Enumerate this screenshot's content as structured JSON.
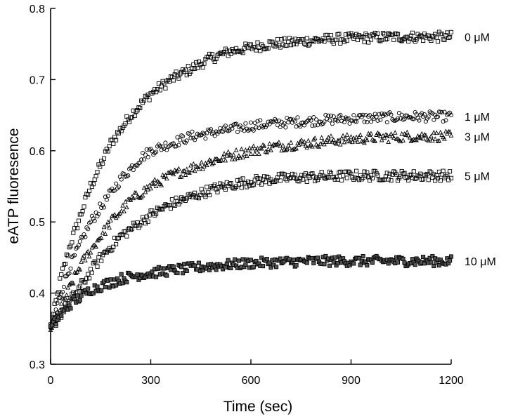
{
  "chart_data": {
    "type": "scatter",
    "title": "",
    "xlabel": "Time (sec)",
    "ylabel": "eATP fluoresence",
    "xlim": [
      0,
      1200
    ],
    "ylim": [
      0.3,
      0.8
    ],
    "xticks": [
      0,
      300,
      600,
      900,
      1200
    ],
    "xtick_labels": [
      "0",
      "300",
      "600",
      "900",
      "1200"
    ],
    "yticks": [
      0.3,
      0.4,
      0.5,
      0.6,
      0.7,
      0.8
    ],
    "ytick_labels": [
      "0.3",
      "0.4",
      "0.5",
      "0.6",
      "0.7",
      "0.8"
    ],
    "grid": false,
    "legend": "none",
    "series": [
      {
        "name": "0 μM",
        "marker": "square",
        "x": [
          0,
          30,
          60,
          90,
          120,
          150,
          180,
          210,
          240,
          270,
          300,
          360,
          420,
          480,
          540,
          600,
          660,
          720,
          780,
          840,
          900,
          960,
          1020,
          1080,
          1140,
          1200
        ],
        "y": [
          0.35,
          0.42,
          0.47,
          0.51,
          0.55,
          0.58,
          0.61,
          0.63,
          0.65,
          0.665,
          0.68,
          0.7,
          0.715,
          0.73,
          0.74,
          0.745,
          0.75,
          0.752,
          0.755,
          0.757,
          0.758,
          0.759,
          0.76,
          0.76,
          0.76,
          0.76
        ]
      },
      {
        "name": "1 μM",
        "marker": "circle",
        "x": [
          0,
          30,
          60,
          90,
          120,
          150,
          180,
          210,
          240,
          270,
          300,
          360,
          420,
          480,
          540,
          600,
          660,
          720,
          780,
          840,
          900,
          960,
          1020,
          1080,
          1140,
          1200
        ],
        "y": [
          0.35,
          0.4,
          0.44,
          0.47,
          0.5,
          0.52,
          0.54,
          0.56,
          0.575,
          0.59,
          0.6,
          0.61,
          0.62,
          0.625,
          0.63,
          0.635,
          0.638,
          0.64,
          0.642,
          0.644,
          0.645,
          0.646,
          0.647,
          0.648,
          0.648,
          0.648
        ]
      },
      {
        "name": "3 μM",
        "marker": "triangle",
        "x": [
          0,
          30,
          60,
          90,
          120,
          150,
          180,
          210,
          240,
          270,
          300,
          360,
          420,
          480,
          540,
          600,
          660,
          720,
          780,
          840,
          900,
          960,
          1020,
          1080,
          1140,
          1200
        ],
        "y": [
          0.35,
          0.38,
          0.41,
          0.44,
          0.46,
          0.48,
          0.5,
          0.515,
          0.53,
          0.54,
          0.55,
          0.565,
          0.575,
          0.585,
          0.593,
          0.6,
          0.605,
          0.608,
          0.611,
          0.614,
          0.616,
          0.618,
          0.619,
          0.62,
          0.62,
          0.62
        ]
      },
      {
        "name": "5 μM",
        "marker": "square",
        "x": [
          0,
          30,
          60,
          90,
          120,
          150,
          180,
          210,
          240,
          270,
          300,
          360,
          420,
          480,
          540,
          600,
          660,
          720,
          780,
          840,
          900,
          960,
          1020,
          1080,
          1140,
          1200
        ],
        "y": [
          0.35,
          0.37,
          0.39,
          0.41,
          0.43,
          0.45,
          0.465,
          0.48,
          0.49,
          0.5,
          0.51,
          0.525,
          0.535,
          0.545,
          0.552,
          0.557,
          0.56,
          0.562,
          0.563,
          0.564,
          0.565,
          0.565,
          0.565,
          0.565,
          0.565,
          0.565
        ]
      },
      {
        "name": "10 μM",
        "marker": "filled-square",
        "x": [
          0,
          30,
          60,
          90,
          120,
          150,
          180,
          210,
          240,
          270,
          300,
          360,
          420,
          480,
          540,
          600,
          660,
          720,
          780,
          840,
          900,
          960,
          1020,
          1080,
          1140,
          1200
        ],
        "y": [
          0.35,
          0.37,
          0.385,
          0.395,
          0.405,
          0.41,
          0.415,
          0.42,
          0.423,
          0.426,
          0.428,
          0.432,
          0.435,
          0.438,
          0.44,
          0.442,
          0.443,
          0.444,
          0.445,
          0.445,
          0.445,
          0.445,
          0.445,
          0.445,
          0.445,
          0.445
        ]
      }
    ]
  }
}
